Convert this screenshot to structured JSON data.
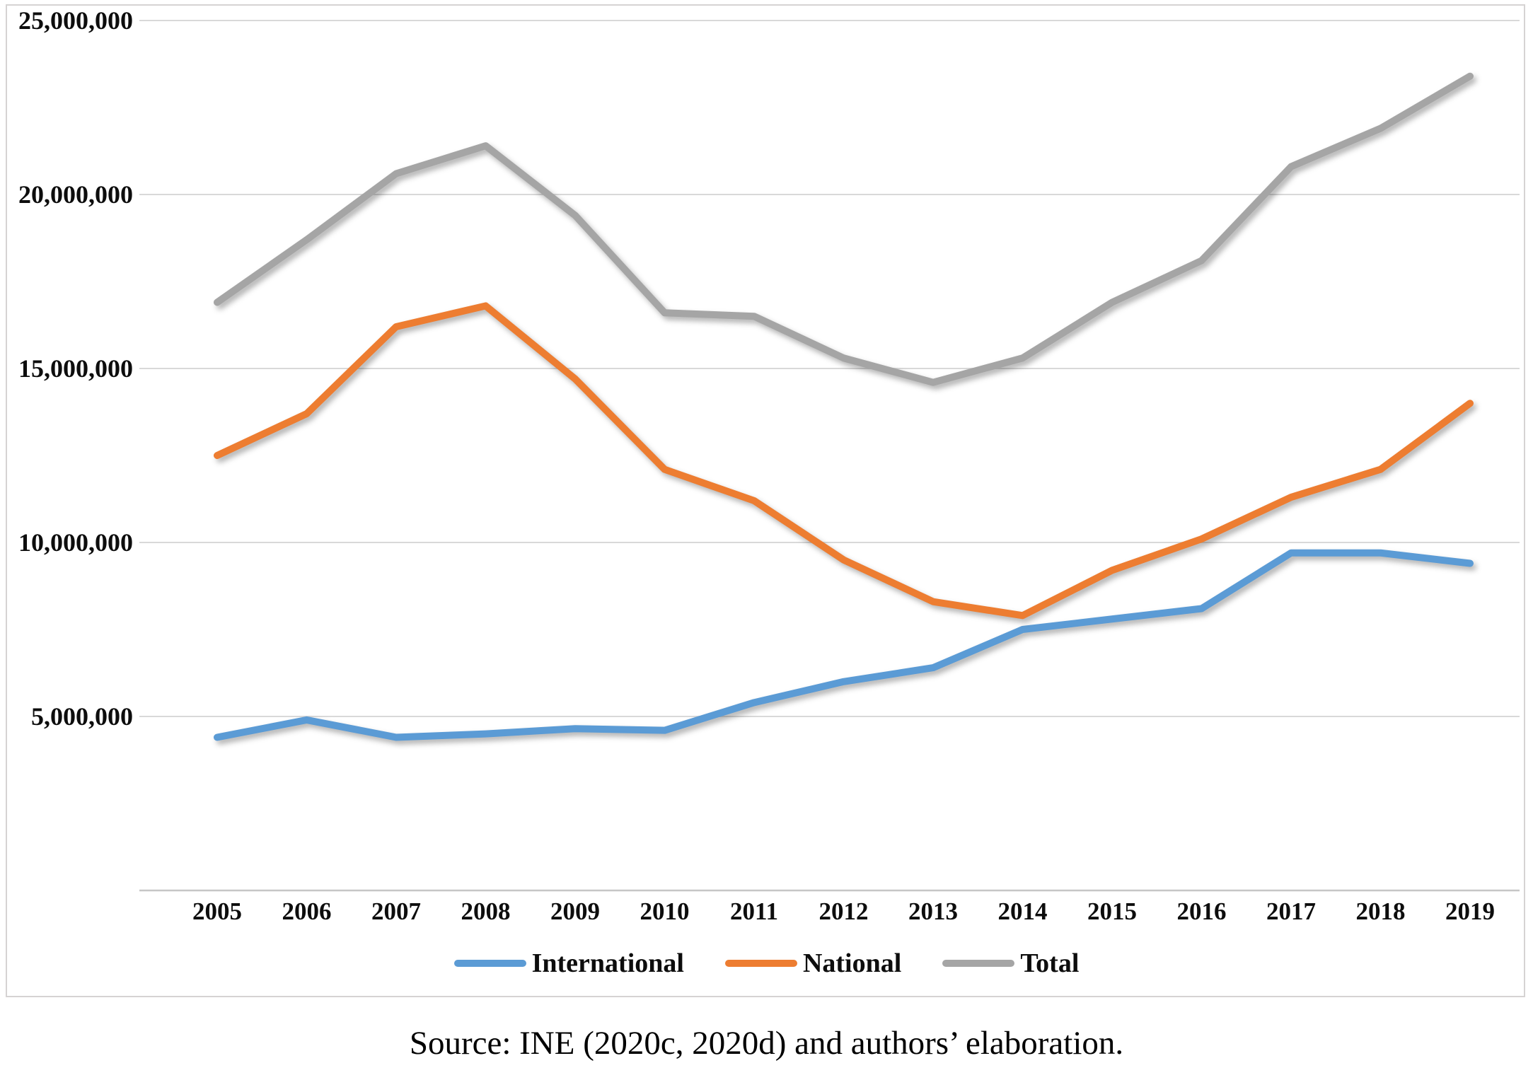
{
  "chart_data": {
    "type": "line",
    "title": "",
    "xlabel": "",
    "ylabel": "",
    "categories": [
      2005,
      2006,
      2007,
      2008,
      2009,
      2010,
      2011,
      2012,
      2013,
      2014,
      2015,
      2016,
      2017,
      2018,
      2019
    ],
    "series": [
      {
        "name": "International",
        "color": "#5B9BD5",
        "values": [
          4400000,
          4900000,
          4400000,
          4500000,
          4650000,
          4600000,
          5400000,
          6000000,
          6400000,
          7500000,
          7800000,
          8100000,
          9700000,
          9700000,
          9400000
        ]
      },
      {
        "name": "National",
        "color": "#ED7D31",
        "values": [
          12500000,
          13700000,
          16200000,
          16800000,
          14700000,
          12100000,
          11200000,
          9500000,
          8300000,
          7900000,
          9200000,
          10100000,
          11300000,
          12100000,
          14000000
        ]
      },
      {
        "name": "Total",
        "color": "#A5A5A5",
        "values": [
          16900000,
          18700000,
          20600000,
          21400000,
          19400000,
          16600000,
          16500000,
          15300000,
          14600000,
          15300000,
          16900000,
          18100000,
          20800000,
          21900000,
          23400000
        ]
      }
    ],
    "ylim": [
      0,
      25000000
    ],
    "ytick_step": 5000000,
    "yticks": [
      {
        "value": 5000000,
        "label": "5,000,000"
      },
      {
        "value": 10000000,
        "label": "10,000,000"
      },
      {
        "value": 15000000,
        "label": "15,000,000"
      },
      {
        "value": 20000000,
        "label": "20,000,000"
      },
      {
        "value": 25000000,
        "label": "25,000,000"
      }
    ],
    "grid": "horizontal",
    "gridline_color": "#d9d9d9",
    "axis_line_color": "#c6c6c6",
    "legend_position": "bottom"
  },
  "source_note": "Source: INE (2020c, 2020d) and authors’ elaboration."
}
